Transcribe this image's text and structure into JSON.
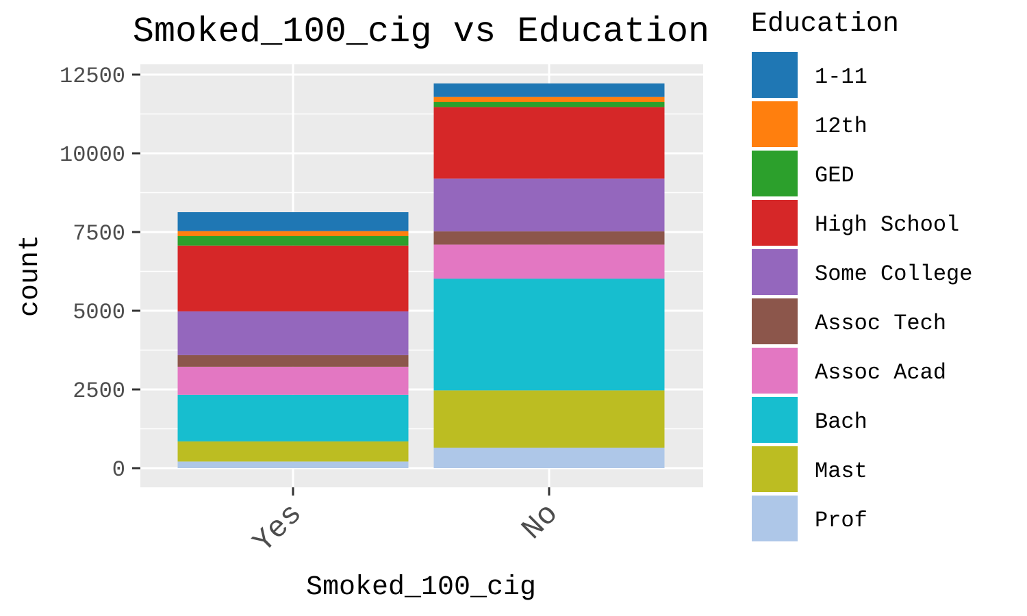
{
  "chart_data": {
    "type": "bar",
    "stacked": true,
    "title": "Smoked_100_cig vs Education",
    "xlabel": "Smoked_100_cig",
    "ylabel": "count",
    "categories": [
      "Yes",
      "No"
    ],
    "ylim": [
      0,
      12500
    ],
    "yticks": [
      0,
      2500,
      5000,
      7500,
      10000,
      12500
    ],
    "grid": true,
    "legend": {
      "title": "Education",
      "position": "right"
    },
    "series": [
      {
        "name": "1-11",
        "color": "#1f77b4",
        "values": [
          600,
          430
        ]
      },
      {
        "name": "12th",
        "color": "#ff7f0e",
        "values": [
          160,
          160
        ]
      },
      {
        "name": "GED",
        "color": "#2ca02c",
        "values": [
          300,
          160
        ]
      },
      {
        "name": "High School",
        "color": "#d62728",
        "values": [
          2090,
          2270
        ]
      },
      {
        "name": "Some College",
        "color": "#9467bd",
        "values": [
          1390,
          1680
        ]
      },
      {
        "name": "Assoc Tech",
        "color": "#8c564b",
        "values": [
          370,
          420
        ]
      },
      {
        "name": "Assoc Acad",
        "color": "#e377c2",
        "values": [
          890,
          1080
        ]
      },
      {
        "name": "Bach",
        "color": "#17becf",
        "values": [
          1480,
          3550
        ]
      },
      {
        "name": "Mast",
        "color": "#bcbd22",
        "values": [
          640,
          1820
        ]
      },
      {
        "name": "Prof",
        "color": "#aec7e8",
        "values": [
          210,
          650
        ]
      }
    ]
  }
}
